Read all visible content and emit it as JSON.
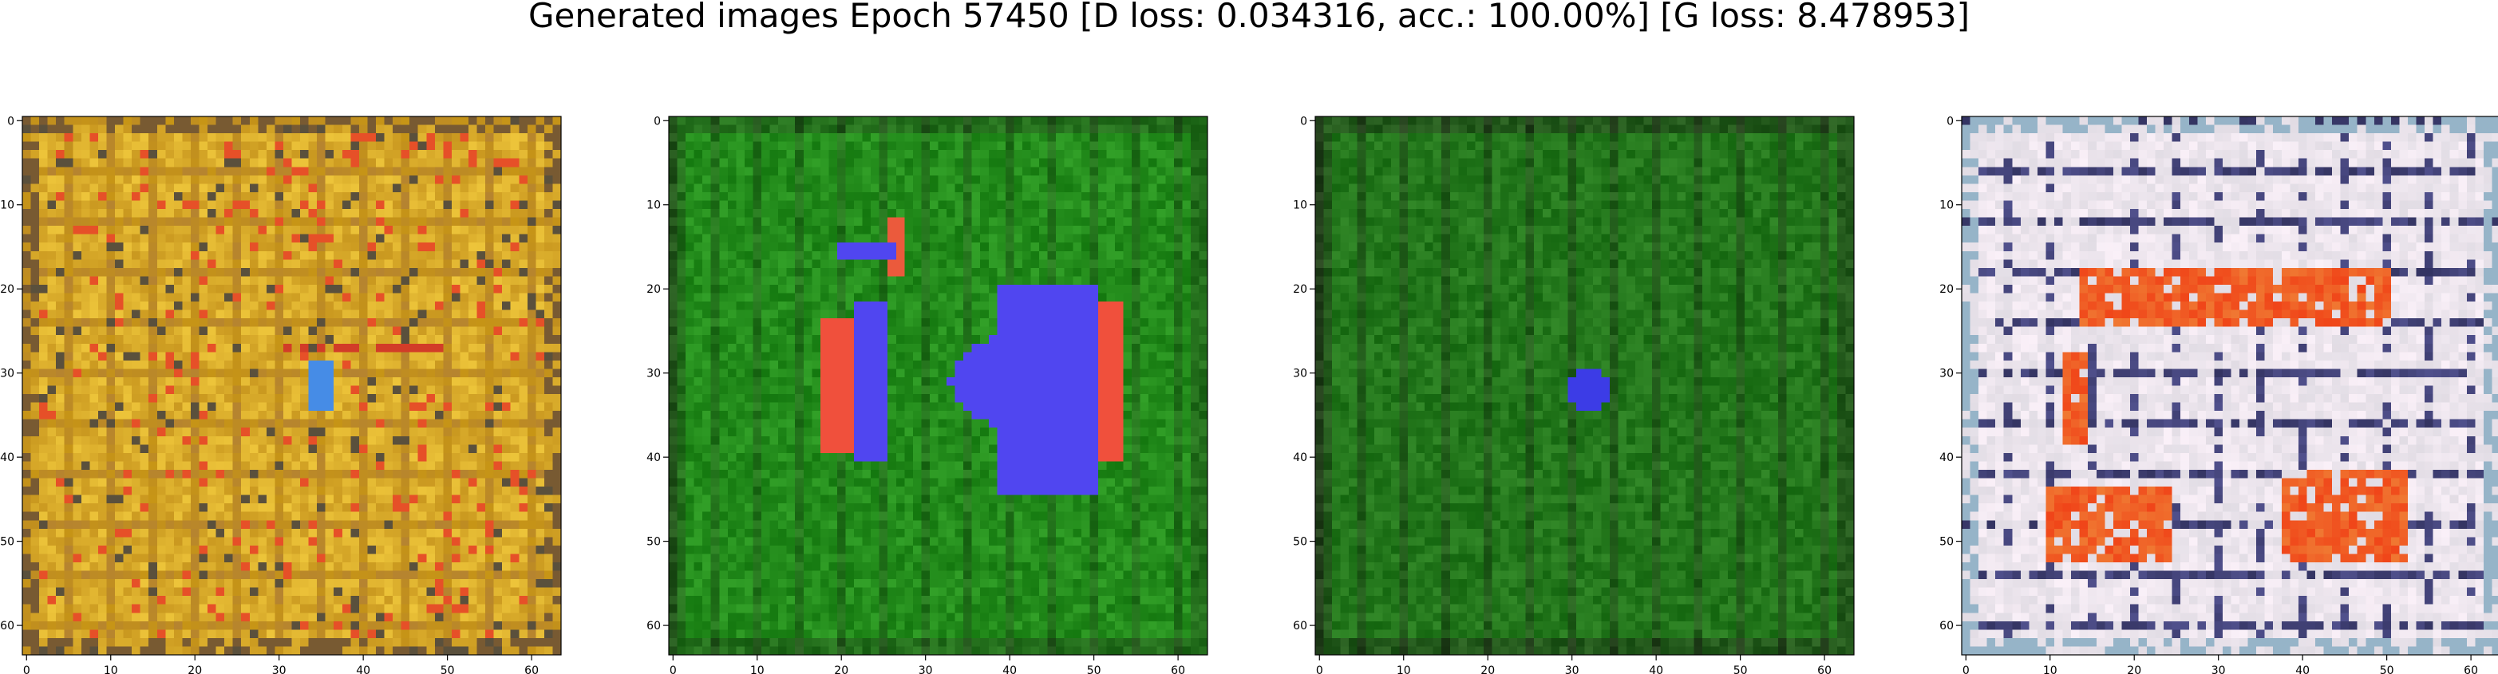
{
  "figure": {
    "title": "Generated images Epoch 57450 [D loss: 0.034316, acc.: 100.00%] [G loss: 8.478953]"
  },
  "panels": [
    {
      "name": "generated-image-1",
      "palette": "gold",
      "base": "#c89a2a",
      "accent": "#e0c040",
      "x_ticks": [
        "0",
        "10",
        "20",
        "30",
        "40",
        "50",
        "60"
      ],
      "y_ticks": [
        "0",
        "10",
        "20",
        "30",
        "40",
        "50",
        "60"
      ]
    },
    {
      "name": "generated-image-2",
      "palette": "green",
      "base": "#1f8a1f",
      "accent": "#4b4bf0",
      "x_ticks": [
        "0",
        "10",
        "20",
        "30",
        "40",
        "50",
        "60"
      ],
      "y_ticks": [
        "0",
        "10",
        "20",
        "30",
        "40",
        "50",
        "60"
      ]
    },
    {
      "name": "generated-image-3",
      "palette": "green-dark",
      "base": "#1d801d",
      "accent": "#3a3ae0",
      "x_ticks": [
        "0",
        "10",
        "20",
        "30",
        "40",
        "50",
        "60"
      ],
      "y_ticks": [
        "0",
        "10",
        "20",
        "30",
        "40",
        "50",
        "60"
      ]
    },
    {
      "name": "generated-image-4",
      "palette": "white-red",
      "base": "#e6dfe8",
      "accent": "#f03a10",
      "x_ticks": [
        "0",
        "10",
        "20",
        "30",
        "40",
        "50",
        "60"
      ],
      "y_ticks": [
        "0",
        "10",
        "20",
        "30",
        "40",
        "50",
        "60"
      ]
    }
  ]
}
